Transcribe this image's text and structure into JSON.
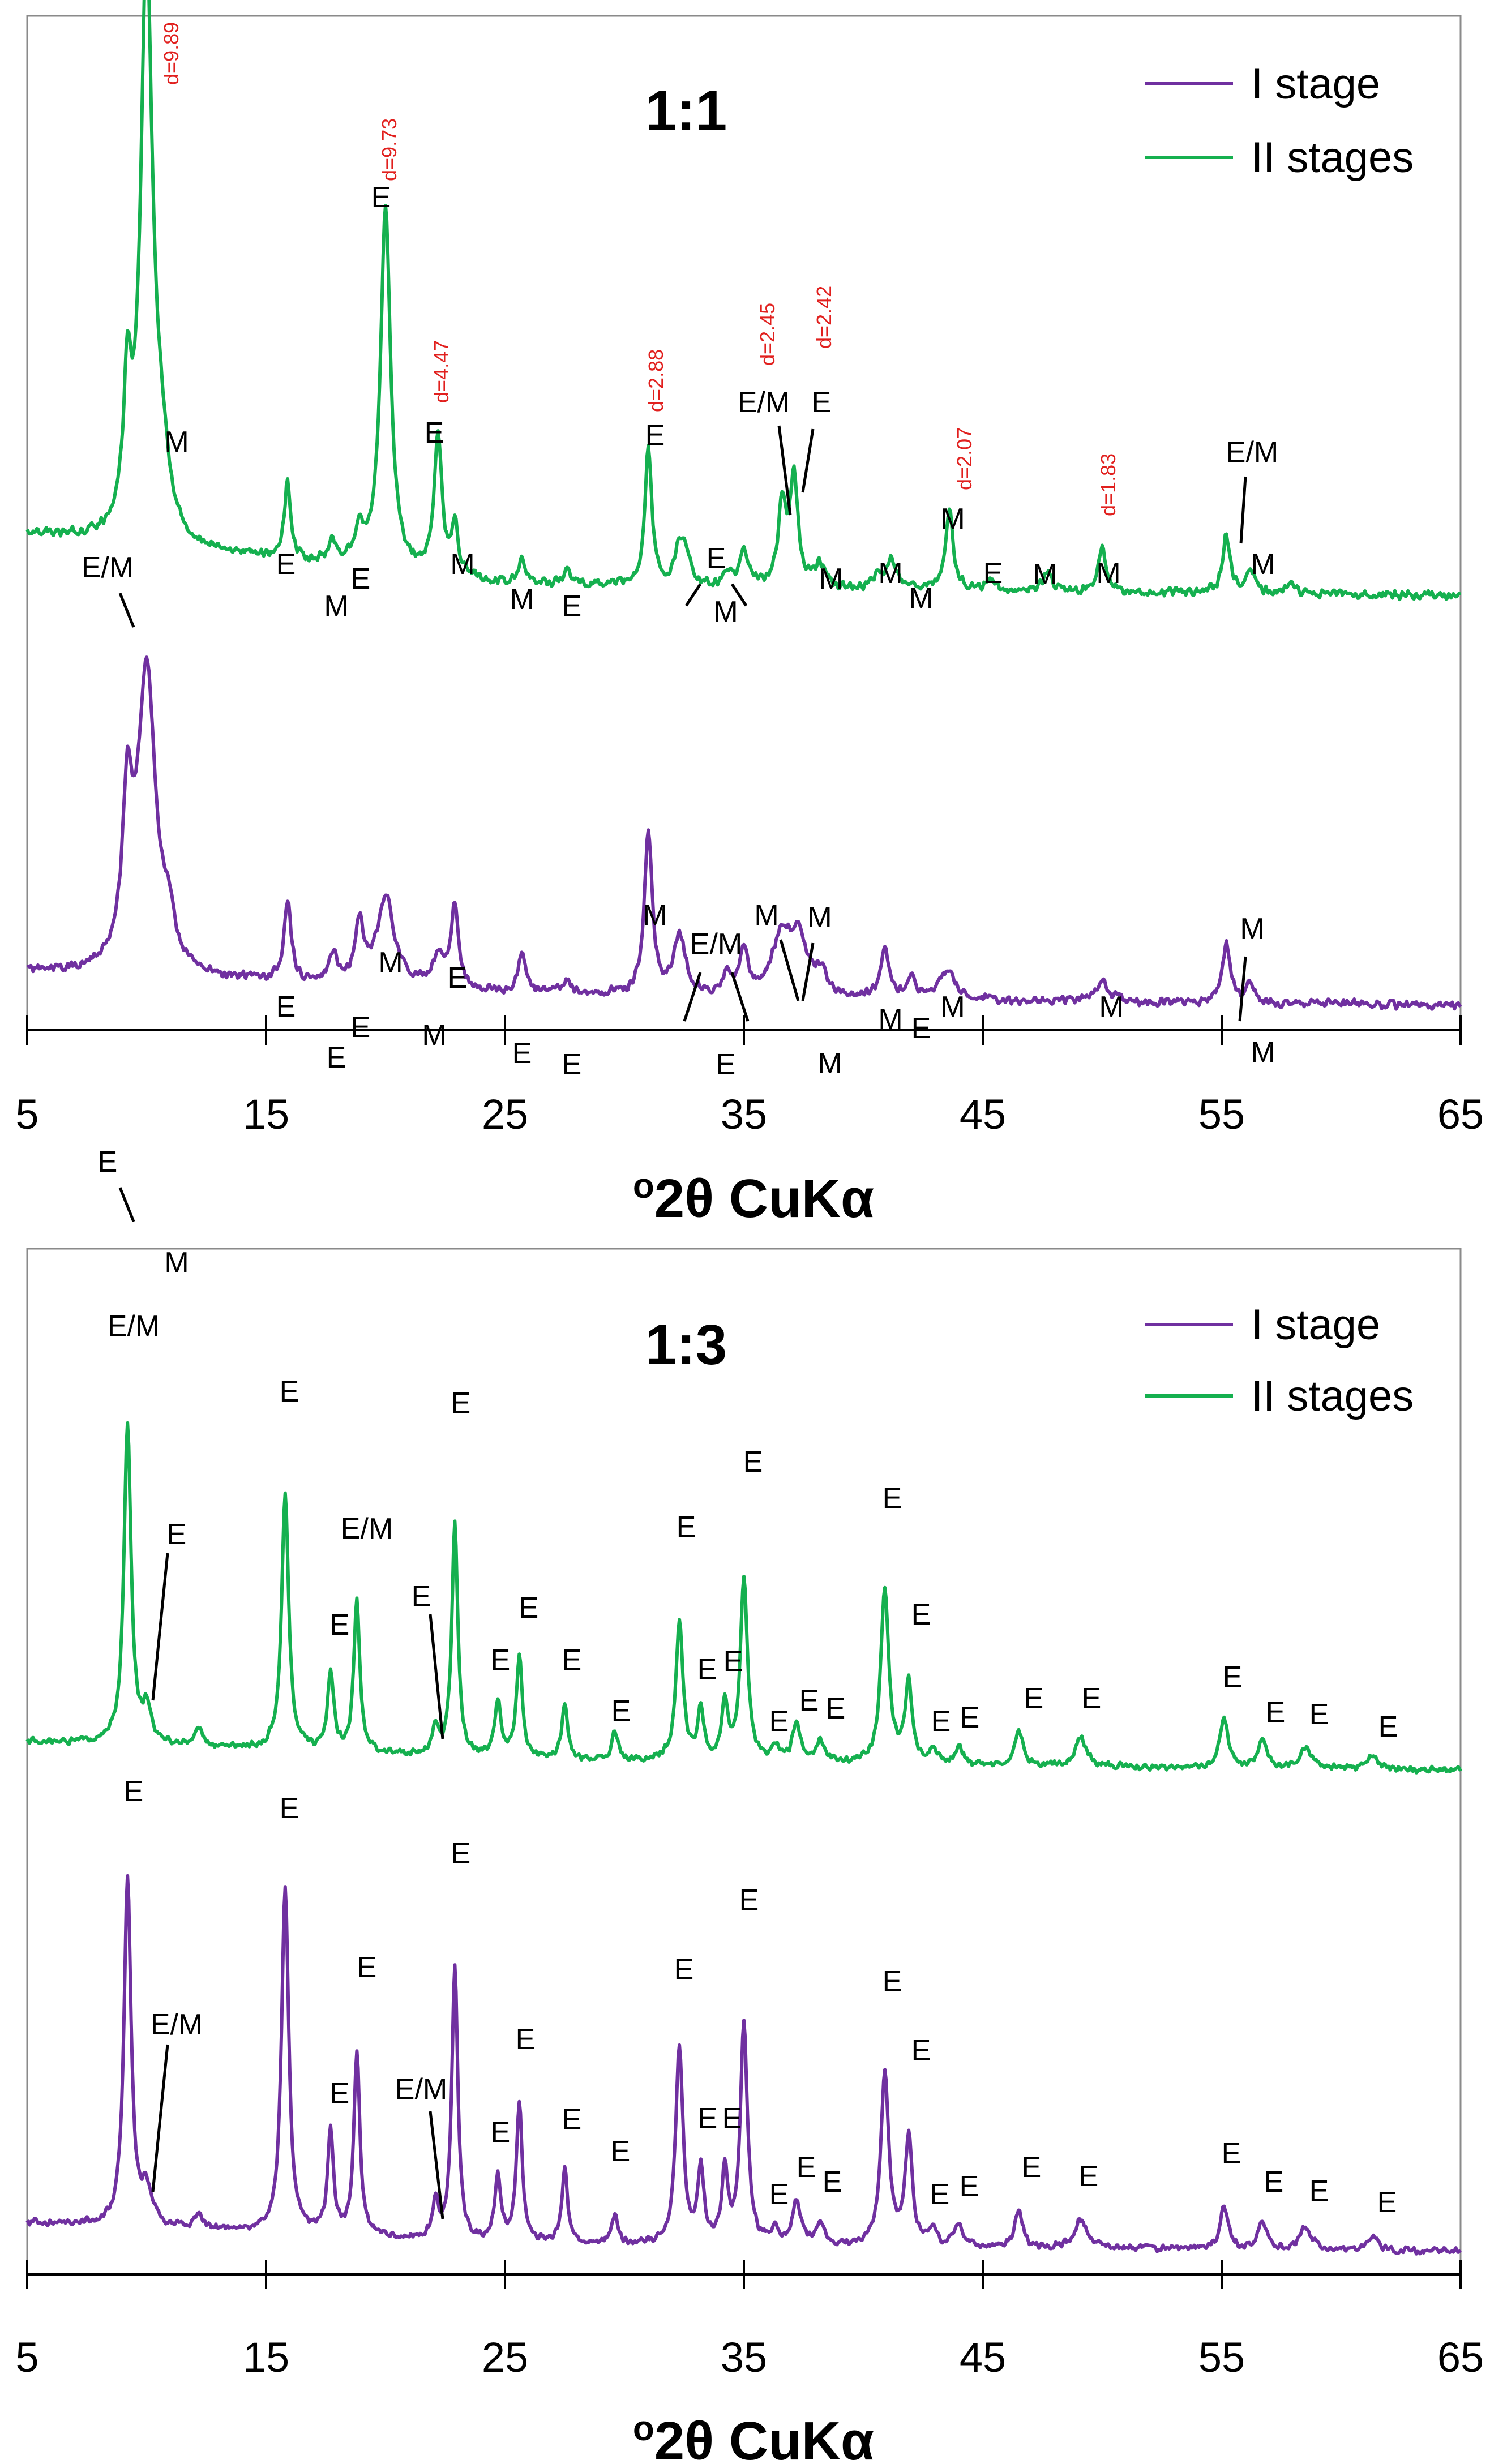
{
  "colors": {
    "stage1": "#7030a0",
    "stage2": "#15b04f",
    "d_label": "#e1201e"
  },
  "chart_data": [
    {
      "type": "line",
      "title": "1:1",
      "xlabel": "°2θ CuKα",
      "xlabel_sup": "o",
      "xlabel_main": "2θ CuKα",
      "ylabel": "",
      "xlim": [
        5,
        65
      ],
      "xticks": [
        5,
        15,
        25,
        35,
        45,
        55,
        65
      ],
      "xtick_labels": [
        "5",
        "15",
        "25",
        "35",
        "45",
        "55",
        "65"
      ],
      "legend": [
        "I stage",
        "II stages"
      ],
      "legend_position": "top-right",
      "grid": false,
      "series": [
        {
          "name": "I stage",
          "color": "#7030a0",
          "baseline": [
            [
              5,
              0.12
            ],
            [
              25,
              0.06
            ],
            [
              45,
              0.04
            ],
            [
              65,
              0.03
            ]
          ],
          "peaks": [
            [
              9.2,
              0.42,
              0.25
            ],
            [
              10.0,
              0.82,
              0.45
            ],
            [
              10.9,
              0.1,
              0.3
            ],
            [
              15.9,
              0.22,
              0.18
            ],
            [
              17.8,
              0.08,
              0.2
            ],
            [
              18.9,
              0.16,
              0.22
            ],
            [
              20.0,
              0.24,
              0.45
            ],
            [
              22.2,
              0.08,
              0.3
            ],
            [
              22.9,
              0.22,
              0.2
            ],
            [
              25.7,
              0.1,
              0.2
            ],
            [
              27.6,
              0.04,
              0.2
            ],
            [
              31.0,
              0.44,
              0.2
            ],
            [
              32.3,
              0.16,
              0.3
            ],
            [
              34.3,
              0.06,
              0.2
            ],
            [
              35.0,
              0.12,
              0.2
            ],
            [
              36.6,
              0.16,
              0.5
            ],
            [
              37.3,
              0.14,
              0.4
            ],
            [
              38.2,
              0.06,
              0.3
            ],
            [
              40.9,
              0.14,
              0.2
            ],
            [
              42.0,
              0.06,
              0.2
            ],
            [
              43.5,
              0.08,
              0.4
            ],
            [
              50.0,
              0.05,
              0.4
            ],
            [
              55.2,
              0.16,
              0.2
            ],
            [
              56.2,
              0.05,
              0.2
            ]
          ]
        },
        {
          "name": "II stages",
          "color": "#15b04f",
          "baseline": [
            [
              5,
              0.18
            ],
            [
              25,
              0.04
            ],
            [
              45,
              0.02
            ],
            [
              65,
              0.01
            ]
          ],
          "peaks": [
            [
              9.2,
              0.38,
              0.2
            ],
            [
              10.0,
              1.6,
              0.3
            ],
            [
              10.6,
              0.18,
              0.35
            ],
            [
              15.9,
              0.22,
              0.15
            ],
            [
              17.8,
              0.06,
              0.2
            ],
            [
              18.9,
              0.1,
              0.2
            ],
            [
              20.0,
              1.0,
              0.25
            ],
            [
              22.2,
              0.38,
              0.2
            ],
            [
              22.9,
              0.14,
              0.15
            ],
            [
              25.7,
              0.06,
              0.2
            ],
            [
              27.6,
              0.04,
              0.2
            ],
            [
              31.0,
              0.38,
              0.18
            ],
            [
              32.3,
              0.1,
              0.2
            ],
            [
              32.6,
              0.08,
              0.2
            ],
            [
              34.3,
              0.04,
              0.2
            ],
            [
              35.0,
              0.1,
              0.2
            ],
            [
              36.6,
              0.22,
              0.2
            ],
            [
              37.1,
              0.3,
              0.2
            ],
            [
              38.2,
              0.06,
              0.25
            ],
            [
              40.6,
              0.04,
              0.2
            ],
            [
              41.2,
              0.08,
              0.25
            ],
            [
              43.6,
              0.22,
              0.2
            ],
            [
              45.3,
              0.04,
              0.2
            ],
            [
              47.7,
              0.06,
              0.2
            ],
            [
              50.0,
              0.12,
              0.2
            ],
            [
              55.2,
              0.16,
              0.18
            ],
            [
              56.2,
              0.06,
              0.2
            ],
            [
              57.9,
              0.03,
              0.2
            ]
          ]
        }
      ],
      "labels": [
        "E",
        "M",
        "E",
        "E",
        "E",
        "M",
        "M",
        "E",
        "E",
        "E",
        "M",
        "E/M",
        "E",
        "M",
        "M",
        "M",
        "M",
        "E",
        "M",
        "M",
        "M",
        "M",
        "E/M",
        "M",
        "E",
        "M",
        "E",
        "E",
        "E",
        "M",
        "M",
        "E",
        "E",
        "E",
        "M",
        "E/M",
        "E",
        "M",
        "M",
        "M",
        "M",
        "E",
        "M",
        "M",
        "E/M",
        "M"
      ],
      "d_spacings": [
        "d=9.89",
        "d=9.73",
        "d=4.47",
        "d=2.88",
        "d=2.45",
        "d=2.42",
        "d=2.07",
        "d=1.83"
      ]
    },
    {
      "type": "line",
      "title": "1:3",
      "xlabel": "°2θ CuKα",
      "xlabel_sup": "o",
      "xlabel_main": "2θ CuKα",
      "ylabel": "",
      "xlim": [
        5,
        65
      ],
      "xticks": [
        5,
        15,
        25,
        35,
        45,
        55,
        65
      ],
      "xtick_labels": [
        "5",
        "15",
        "25",
        "35",
        "45",
        "55",
        "65"
      ],
      "legend": [
        "I stage",
        "II stages"
      ],
      "legend_position": "top-right",
      "grid": false,
      "series": [
        {
          "name": "I stage",
          "color": "#7030a0",
          "baseline": [
            [
              5,
              0.1
            ],
            [
              25,
              0.04
            ],
            [
              45,
              0.03
            ],
            [
              65,
              0.02
            ]
          ],
          "peaks": [
            [
              9.2,
              0.95,
              0.18
            ],
            [
              10.0,
              0.1,
              0.25
            ],
            [
              12.2,
              0.04,
              0.2
            ],
            [
              15.8,
              0.95,
              0.18
            ],
            [
              17.7,
              0.28,
              0.15
            ],
            [
              18.8,
              0.5,
              0.15
            ],
            [
              22.1,
              0.1,
              0.15
            ],
            [
              22.9,
              0.75,
              0.15
            ],
            [
              24.7,
              0.18,
              0.15
            ],
            [
              25.6,
              0.38,
              0.15
            ],
            [
              27.5,
              0.2,
              0.15
            ],
            [
              29.6,
              0.08,
              0.15
            ],
            [
              32.3,
              0.55,
              0.18
            ],
            [
              33.2,
              0.2,
              0.15
            ],
            [
              34.2,
              0.2,
              0.15
            ],
            [
              35.0,
              0.6,
              0.18
            ],
            [
              36.3,
              0.04,
              0.2
            ],
            [
              37.2,
              0.12,
              0.2
            ],
            [
              38.2,
              0.06,
              0.2
            ],
            [
              40.9,
              0.48,
              0.2
            ],
            [
              41.9,
              0.3,
              0.18
            ],
            [
              42.9,
              0.04,
              0.2
            ],
            [
              44.0,
              0.06,
              0.2
            ],
            [
              46.5,
              0.1,
              0.2
            ],
            [
              49.1,
              0.08,
              0.3
            ],
            [
              55.1,
              0.12,
              0.2
            ],
            [
              56.7,
              0.08,
              0.2
            ],
            [
              58.5,
              0.06,
              0.3
            ],
            [
              61.3,
              0.04,
              0.25
            ]
          ]
        },
        {
          "name": "II stages",
          "color": "#15b04f",
          "baseline": [
            [
              5,
              0.1
            ],
            [
              25,
              0.05
            ],
            [
              45,
              0.03
            ],
            [
              65,
              0.02
            ]
          ],
          "peaks": [
            [
              9.2,
              0.88,
              0.18
            ],
            [
              10.0,
              0.1,
              0.2
            ],
            [
              12.2,
              0.05,
              0.2
            ],
            [
              15.8,
              0.7,
              0.18
            ],
            [
              17.7,
              0.22,
              0.15
            ],
            [
              18.8,
              0.42,
              0.15
            ],
            [
              22.1,
              0.08,
              0.15
            ],
            [
              22.9,
              0.65,
              0.15
            ],
            [
              24.7,
              0.16,
              0.15
            ],
            [
              25.6,
              0.28,
              0.15
            ],
            [
              27.5,
              0.15,
              0.15
            ],
            [
              29.6,
              0.08,
              0.15
            ],
            [
              32.3,
              0.38,
              0.18
            ],
            [
              33.2,
              0.14,
              0.15
            ],
            [
              34.2,
              0.16,
              0.15
            ],
            [
              35.0,
              0.5,
              0.18
            ],
            [
              36.3,
              0.04,
              0.2
            ],
            [
              37.2,
              0.1,
              0.2
            ],
            [
              38.2,
              0.06,
              0.2
            ],
            [
              40.9,
              0.48,
              0.2
            ],
            [
              41.9,
              0.22,
              0.18
            ],
            [
              42.9,
              0.04,
              0.2
            ],
            [
              44.0,
              0.05,
              0.2
            ],
            [
              46.5,
              0.1,
              0.2
            ],
            [
              49.1,
              0.08,
              0.3
            ],
            [
              55.1,
              0.14,
              0.2
            ],
            [
              56.7,
              0.08,
              0.2
            ],
            [
              58.5,
              0.06,
              0.3
            ],
            [
              61.3,
              0.04,
              0.25
            ]
          ]
        }
      ],
      "labels": [
        "E",
        "E/M",
        "E",
        "E",
        "E",
        "E/M",
        "E",
        "E",
        "E",
        "E",
        "E",
        "E",
        "E",
        "E",
        "E",
        "E",
        "E",
        "E",
        "E",
        "E",
        "E",
        "E",
        "E",
        "E",
        "E",
        "E",
        "E",
        "E",
        "E/M",
        "E",
        "E",
        "E",
        "E/M",
        "E",
        "E",
        "E",
        "E",
        "E",
        "E",
        "E",
        "E",
        "E",
        "E",
        "E",
        "E",
        "E",
        "E",
        "E",
        "E",
        "E",
        "E",
        "E",
        "E",
        "E",
        "E",
        "E",
        "E",
        "E"
      ]
    }
  ]
}
